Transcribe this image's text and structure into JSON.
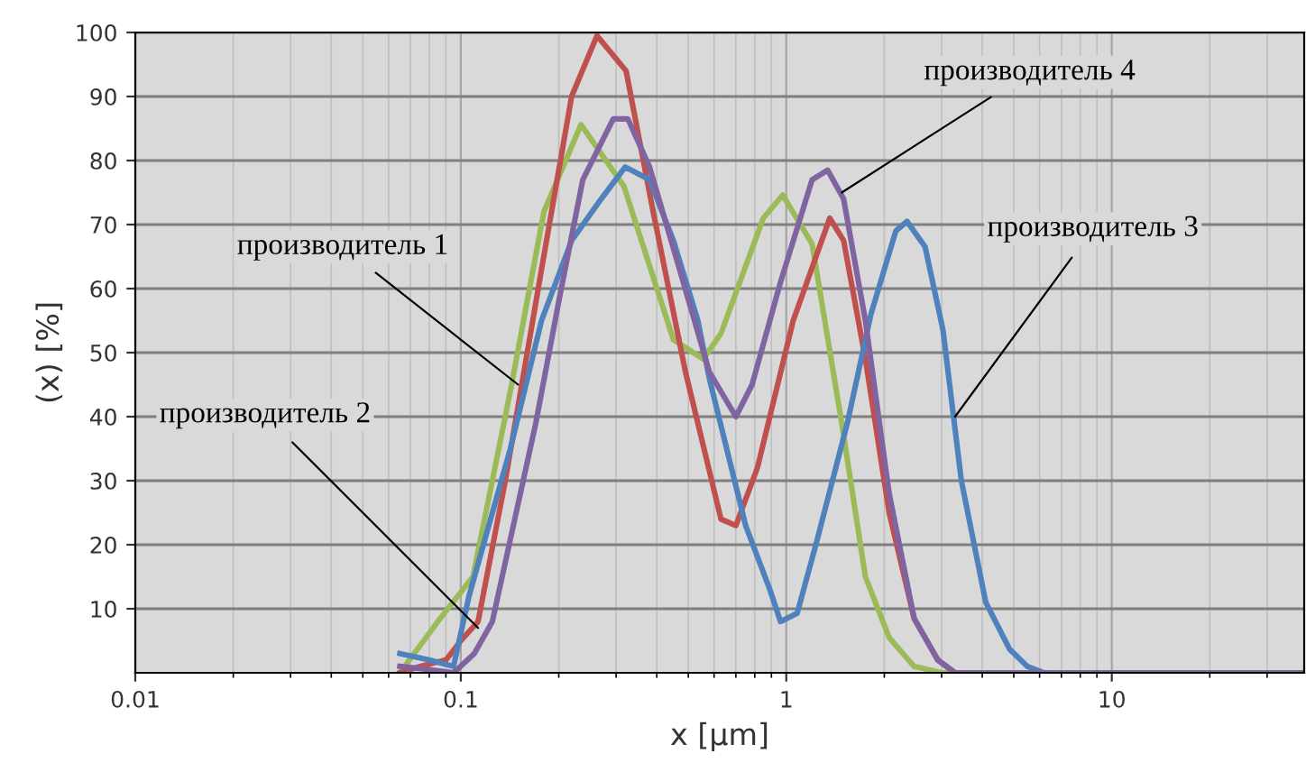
{
  "chart_data": {
    "type": "line",
    "xlabel": "x [μm]",
    "ylabel": "(x) [%]",
    "log": "x",
    "grid": true,
    "legend": false,
    "marker": "none",
    "line_style": "solid",
    "xlim": [
      0.01,
      39
    ],
    "xticks": [
      0.01,
      0.1,
      1,
      10
    ],
    "ylim": [
      0,
      100
    ],
    "yticks": [
      10,
      20,
      30,
      40,
      50,
      60,
      70,
      80,
      90,
      100
    ],
    "series": [
      {
        "color": "#9bbb59",
        "x": [
          0.065,
          0.085,
          0.109,
          0.142,
          0.18,
          0.234,
          0.317,
          0.45,
          0.556,
          0.63,
          0.85,
          0.975,
          1.2,
          1.48,
          1.75,
          2.07,
          2.47,
          3,
          39
        ],
        "values": [
          0,
          8,
          15,
          44,
          72,
          85.6,
          76,
          52,
          49,
          53,
          71,
          74.6,
          67,
          39,
          15,
          5.5,
          1,
          0,
          0
        ]
      },
      {
        "color": "#c0504d",
        "x": [
          0.065,
          0.075,
          0.09,
          0.1,
          0.113,
          0.137,
          0.177,
          0.219,
          0.262,
          0.322,
          0.39,
          0.49,
          0.63,
          0.7,
          0.815,
          1.05,
          1.36,
          1.5,
          1.75,
          2.07,
          2.47,
          2.92,
          3.3,
          39
        ],
        "values": [
          0,
          1,
          2,
          5,
          8,
          30,
          63,
          90,
          99.5,
          94,
          72,
          47,
          24,
          23,
          32,
          55,
          71,
          67.5,
          49,
          25,
          8.5,
          2,
          0,
          0
        ]
      },
      {
        "color": "#4f81bd",
        "x": [
          0.065,
          0.08,
          0.095,
          0.106,
          0.142,
          0.177,
          0.219,
          0.27,
          0.32,
          0.38,
          0.45,
          0.535,
          0.58,
          0.75,
          0.89,
          0.96,
          1.08,
          1.24,
          1.54,
          1.82,
          2.17,
          2.35,
          2.67,
          3.03,
          3.45,
          4.1,
          4.85,
          5.5,
          6.2,
          39
        ],
        "values": [
          3,
          2,
          1,
          12,
          35,
          55,
          67.5,
          74,
          79,
          77,
          67.5,
          55,
          46,
          23,
          13,
          8,
          9.3,
          20.5,
          39,
          56,
          69,
          70.5,
          66.5,
          53.5,
          30,
          11,
          3.7,
          1,
          0,
          0
        ]
      },
      {
        "color": "#8064a2",
        "x": [
          0.065,
          0.08,
          0.095,
          0.11,
          0.125,
          0.17,
          0.2,
          0.237,
          0.294,
          0.326,
          0.38,
          0.47,
          0.58,
          0.7,
          0.785,
          0.96,
          1.2,
          1.34,
          1.5,
          1.75,
          2.07,
          2.47,
          2.92,
          3.3,
          39
        ],
        "values": [
          1,
          0.5,
          0,
          3,
          8,
          39,
          58,
          77,
          86.5,
          86.5,
          79,
          63,
          47,
          40,
          45,
          61,
          77,
          78.5,
          74,
          55,
          28,
          8.5,
          2,
          0,
          0
        ]
      }
    ],
    "annotations": [
      {
        "text": "производитель 1",
        "x": 0.15,
        "y": 45
      },
      {
        "text": "производитель 2",
        "x": 0.113,
        "y": 7
      },
      {
        "text": "производитель 3",
        "x": 3.3,
        "y": 40
      },
      {
        "text": "производитель 4",
        "x": 1.48,
        "y": 75
      }
    ]
  }
}
